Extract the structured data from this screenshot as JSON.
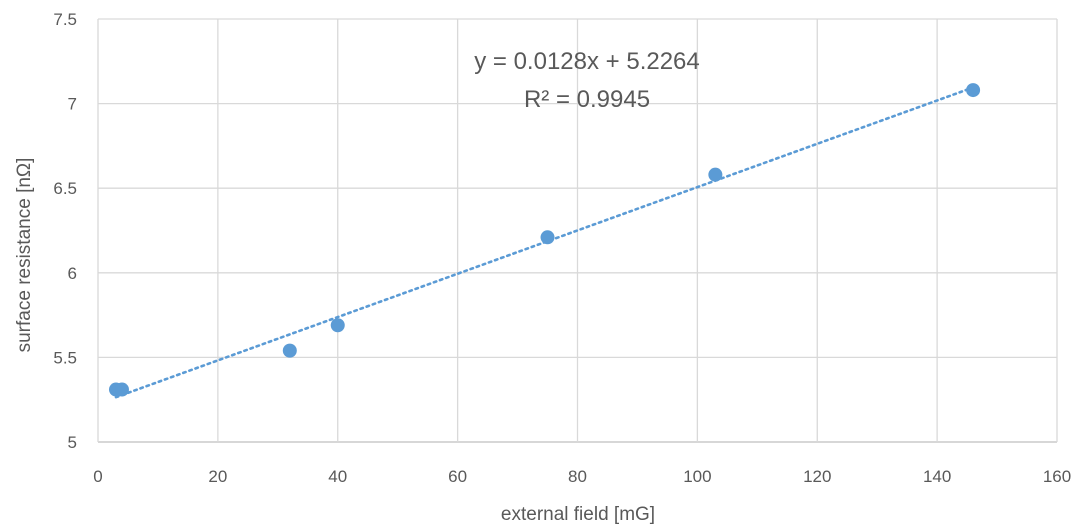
{
  "chart_data": {
    "type": "scatter",
    "xlabel": "external field [mG]",
    "ylabel": "surface resistance [nΩ]",
    "xlim": [
      0,
      160
    ],
    "ylim": [
      5,
      7.5
    ],
    "x_ticks": [
      "0",
      "20",
      "40",
      "60",
      "80",
      "100",
      "120",
      "140",
      "160"
    ],
    "y_ticks": [
      "5",
      "5.5",
      "6",
      "6.5",
      "7",
      "7.5"
    ],
    "grid": true,
    "points": [
      {
        "x": 3,
        "y": 5.31
      },
      {
        "x": 4,
        "y": 5.31
      },
      {
        "x": 32,
        "y": 5.54
      },
      {
        "x": 40,
        "y": 5.69
      },
      {
        "x": 75,
        "y": 6.21
      },
      {
        "x": 103,
        "y": 6.58
      },
      {
        "x": 146,
        "y": 7.08
      }
    ],
    "trendline": {
      "type": "linear",
      "slope": 0.0128,
      "intercept": 5.2264,
      "x_range": [
        3,
        146
      ],
      "style": "dotted",
      "equation": "y = 0.0128x + 5.2264",
      "r_squared": "R² = 0.9945"
    },
    "colors": {
      "series": "#5b9bd5",
      "grid": "#d9d9d9",
      "text": "#595959"
    }
  }
}
